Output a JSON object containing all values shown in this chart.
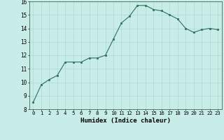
{
  "x": [
    0,
    1,
    2,
    3,
    4,
    5,
    6,
    7,
    8,
    9,
    10,
    11,
    12,
    13,
    14,
    15,
    16,
    17,
    18,
    19,
    20,
    21,
    22,
    23
  ],
  "y": [
    8.5,
    9.8,
    10.2,
    10.5,
    11.5,
    11.5,
    11.5,
    11.8,
    11.8,
    12.0,
    13.2,
    14.4,
    14.9,
    15.7,
    15.7,
    15.4,
    15.3,
    15.0,
    14.7,
    14.0,
    13.7,
    13.9,
    14.0,
    13.9
  ],
  "xlim": [
    -0.5,
    23.5
  ],
  "ylim": [
    8,
    16
  ],
  "yticks": [
    8,
    9,
    10,
    11,
    12,
    13,
    14,
    15,
    16
  ],
  "xticks": [
    0,
    1,
    2,
    3,
    4,
    5,
    6,
    7,
    8,
    9,
    10,
    11,
    12,
    13,
    14,
    15,
    16,
    17,
    18,
    19,
    20,
    21,
    22,
    23
  ],
  "xlabel": "Humidex (Indice chaleur)",
  "line_color": "#2e7060",
  "marker": "s",
  "marker_size": 1.8,
  "bg_color": "#c8ede8",
  "grid_color": "#acd8d0",
  "xlabel_fontsize": 6.5,
  "tick_fontsize": 5.2
}
